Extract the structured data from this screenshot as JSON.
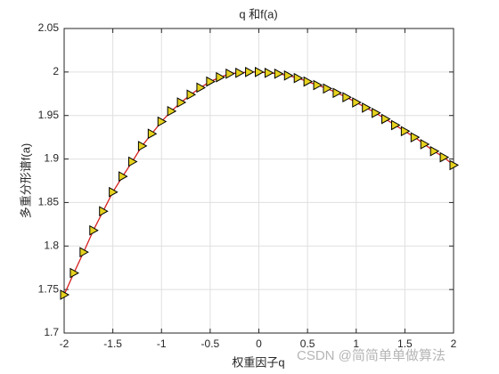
{
  "chart_data": {
    "type": "line",
    "title": "q 和f(a)",
    "x_label": "权重因子q",
    "y_label": "多重分形谱f(a)",
    "x": [
      -2,
      -1.9,
      -1.8,
      -1.7,
      -1.6,
      -1.5,
      -1.4,
      -1.3,
      -1.2,
      -1.1,
      -1,
      -0.9,
      -0.8,
      -0.7,
      -0.6,
      -0.5,
      -0.4,
      -0.3,
      -0.2,
      -0.1,
      0,
      0.1,
      0.2,
      0.3,
      0.4,
      0.5,
      0.6,
      0.7,
      0.8,
      0.9,
      1,
      1.1,
      1.2,
      1.3,
      1.4,
      1.5,
      1.6,
      1.7,
      1.8,
      1.9,
      2
    ],
    "series": [
      {
        "color": "#d62020",
        "marker_color": "#e6d21e",
        "values": [
          1.744,
          1.769,
          1.793,
          1.818,
          1.84,
          1.862,
          1.88,
          1.897,
          1.915,
          1.929,
          1.943,
          1.955,
          1.965,
          1.974,
          1.982,
          1.989,
          1.994,
          1.998,
          1.999,
          2.0,
          2.0,
          1.999,
          1.998,
          1.996,
          1.993,
          1.989,
          1.985,
          1.981,
          1.976,
          1.971,
          1.965,
          1.959,
          1.953,
          1.946,
          1.939,
          1.932,
          1.925,
          1.917,
          1.909,
          1.902,
          1.893
        ]
      }
    ],
    "xlim": [
      -2,
      2
    ],
    "xticks": [
      -2,
      -1.5,
      -1,
      -0.5,
      0,
      0.5,
      1,
      1.5,
      2
    ],
    "ylim": [
      1.7,
      2.05
    ],
    "yticks": [
      1.7,
      1.75,
      1.8,
      1.85,
      1.9,
      1.95,
      2,
      2.05
    ],
    "grid": true,
    "watermark": "CSDN @简简单单做算法"
  }
}
